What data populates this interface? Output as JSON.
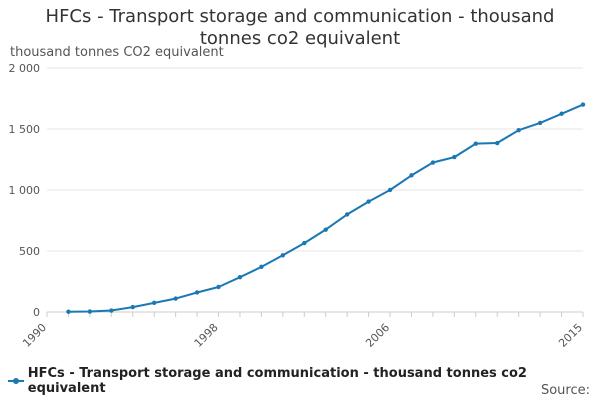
{
  "chart_data": {
    "type": "line",
    "title_line1": "HFCs - Transport storage and communication - thousand",
    "title_line2": "tonnes co2 equivalent",
    "ylabel": "thousand tonnes CO2 equivalent",
    "xlabel": "",
    "ylim": [
      0,
      2000
    ],
    "xlim": [
      1990,
      2015
    ],
    "yticks": [
      {
        "value": 0,
        "label": "0"
      },
      {
        "value": 500,
        "label": "500"
      },
      {
        "value": 1000,
        "label": "1 000"
      },
      {
        "value": 1500,
        "label": "1 500"
      },
      {
        "value": 2000,
        "label": "2 000"
      }
    ],
    "xticks": [
      {
        "value": 1990,
        "label": "1990"
      },
      {
        "value": 1998,
        "label": "1998"
      },
      {
        "value": 2006,
        "label": "2006"
      },
      {
        "value": 2015,
        "label": "2015"
      }
    ],
    "series": [
      {
        "name": "HFCs - Transport storage and communication - thousand tonnes co2 equivalent",
        "color": "#1a78b4",
        "x": [
          1991,
          1992,
          1993,
          1994,
          1995,
          1996,
          1997,
          1998,
          1999,
          2000,
          2001,
          2002,
          2003,
          2004,
          2005,
          2006,
          2007,
          2008,
          2009,
          2010,
          2011,
          2012,
          2013,
          2014,
          2015
        ],
        "values": [
          2,
          4,
          12,
          40,
          75,
          110,
          160,
          205,
          285,
          370,
          465,
          565,
          675,
          800,
          905,
          1000,
          1120,
          1225,
          1270,
          1380,
          1385,
          1490,
          1550,
          1625,
          1700
        ]
      }
    ]
  },
  "legend_label": "HFCs - Transport storage and communication - thousand tonnes co2 equivalent",
  "source_label": "Source:"
}
